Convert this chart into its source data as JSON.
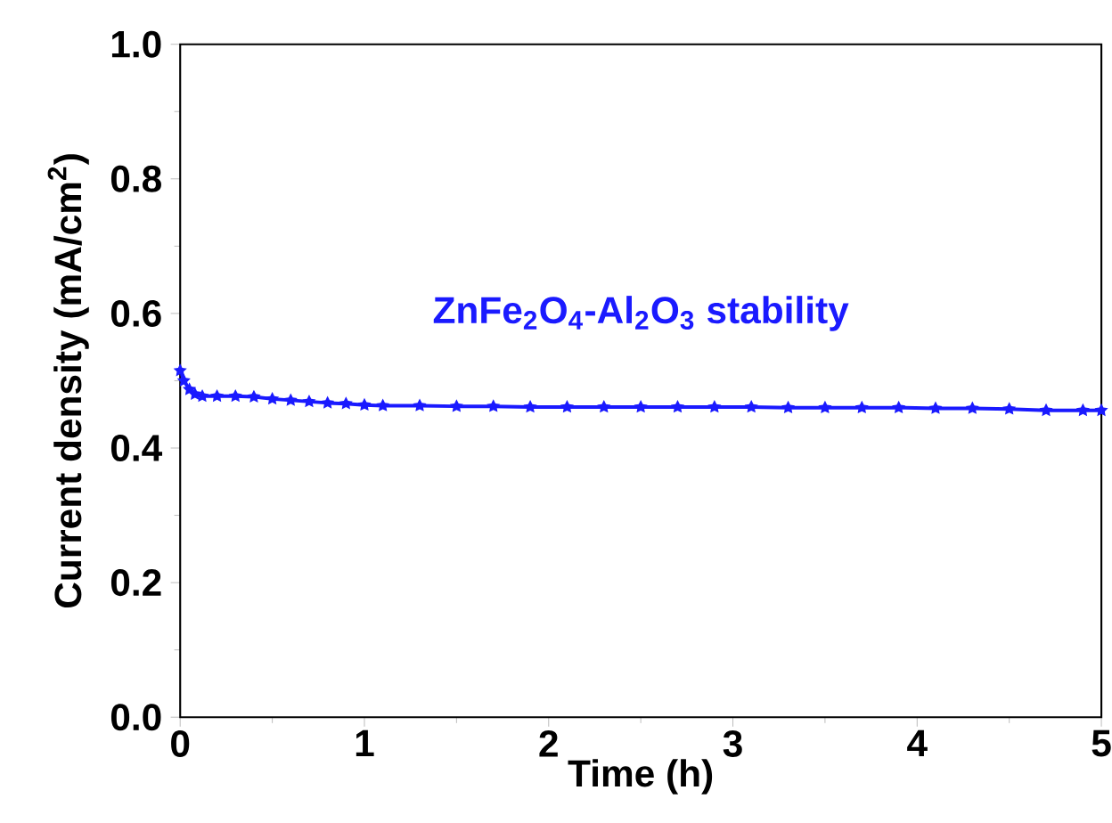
{
  "chart_data": {
    "type": "line",
    "xlabel": "Time (h)",
    "ylabel": "Current density (mA/cm$^{2}$)",
    "xlim": [
      0,
      5
    ],
    "ylim": [
      0,
      1.0
    ],
    "xticks": [
      0,
      1,
      2,
      3,
      4,
      5
    ],
    "yticks": [
      {
        "value": 0,
        "label": "0.0"
      },
      0.2,
      0.4,
      0.6,
      0.8,
      {
        "value": 1.0,
        "label": "1.0"
      }
    ],
    "marker": "star",
    "line_style": "solid",
    "series": [
      {
        "name": "ZnFe$_{2}$O$_{4}$-Al$_{2}$O$_{3}$ stability",
        "color": "#1a1aff",
        "x": [
          0,
          0.02,
          0.05,
          0.08,
          0.12,
          0.2,
          0.3,
          0.4,
          0.5,
          0.6,
          0.7,
          0.8,
          0.9,
          1.0,
          1.1,
          1.3,
          1.5,
          1.7,
          1.9,
          2.1,
          2.3,
          2.5,
          2.7,
          2.9,
          3.1,
          3.3,
          3.5,
          3.7,
          3.9,
          4.1,
          4.3,
          4.5,
          4.7,
          4.9,
          5.0
        ],
        "values": [
          0.515,
          0.5,
          0.487,
          0.48,
          0.477,
          0.477,
          0.477,
          0.476,
          0.473,
          0.471,
          0.469,
          0.467,
          0.466,
          0.464,
          0.463,
          0.463,
          0.462,
          0.462,
          0.461,
          0.461,
          0.461,
          0.461,
          0.461,
          0.461,
          0.461,
          0.46,
          0.46,
          0.46,
          0.46,
          0.459,
          0.459,
          0.458,
          0.456,
          0.456,
          0.456
        ]
      }
    ]
  }
}
